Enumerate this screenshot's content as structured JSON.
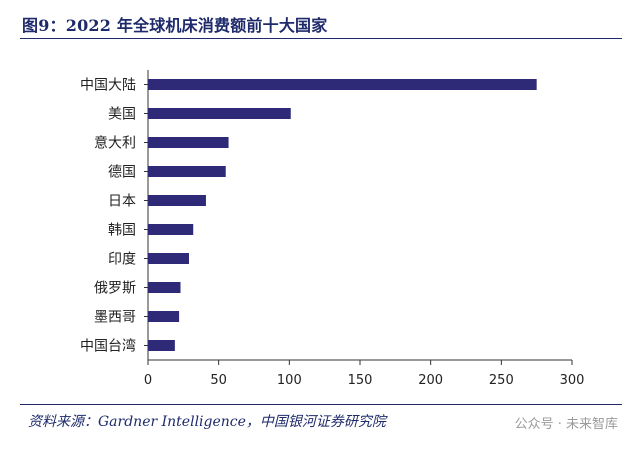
{
  "header": {
    "title": "图9：2022 年全球机床消费额前十大国家"
  },
  "footer": {
    "source": "资料来源：Gardner Intelligence，中国银河证券研究院",
    "watermark": "公众号 · 未来智库"
  },
  "chart_data": {
    "type": "bar",
    "orientation": "horizontal",
    "title": "",
    "xlabel": "",
    "ylabel": "",
    "categories": [
      "中国大陆",
      "美国",
      "意大利",
      "德国",
      "日本",
      "韩国",
      "印度",
      "俄罗斯",
      "墨西哥",
      "中国台湾"
    ],
    "values": [
      275,
      101,
      57,
      55,
      41,
      32,
      29,
      23,
      22,
      19
    ],
    "xlim": [
      0,
      300
    ],
    "xticks": [
      0,
      50,
      100,
      150,
      200,
      250,
      300
    ],
    "xtick_labels": [
      "0",
      "50",
      "100",
      "150",
      "200",
      "250",
      "300"
    ],
    "grid": false,
    "legend": "none",
    "bar_color": "#2e2a78"
  }
}
